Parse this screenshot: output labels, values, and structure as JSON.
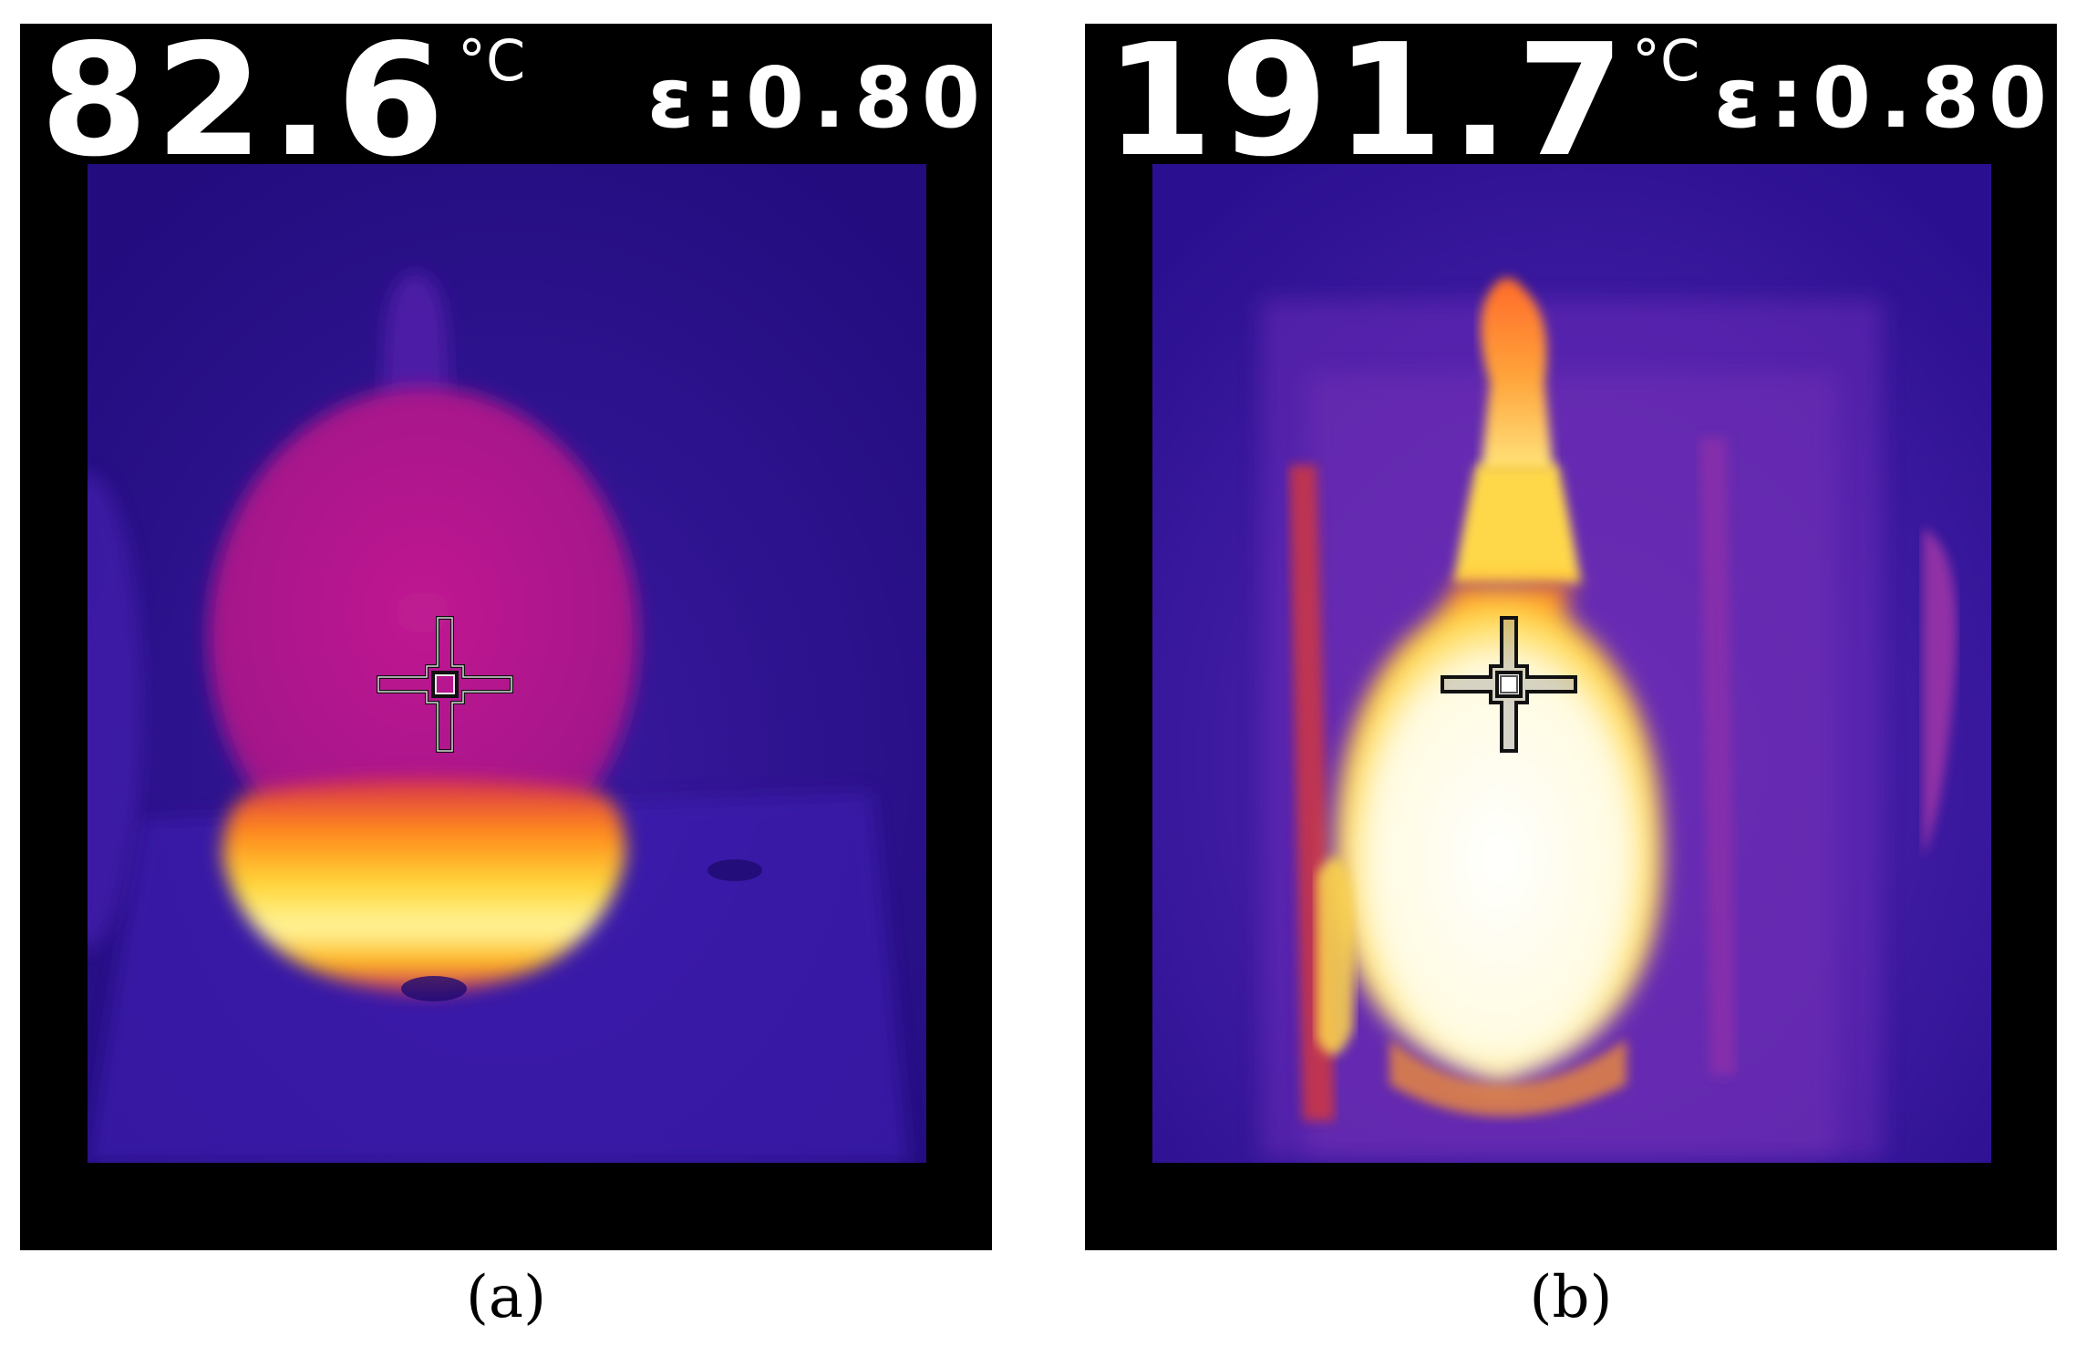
{
  "panels": [
    {
      "temperature": "82.6",
      "unit": "°C",
      "emissivity": "ε:0.80",
      "caption": "(a)"
    },
    {
      "temperature": "191.7",
      "unit": "°C",
      "emissivity": "ε:0.80",
      "caption": "(b)"
    }
  ],
  "colors": {
    "background_blue": "#2a0f8c",
    "flask_magenta": "#b0158c",
    "hot_yellow": "#fff06a",
    "hot_white": "#fffbe8",
    "overlay_text": "#ffffff"
  },
  "icons": {
    "reticle": "crosshair-icon"
  }
}
